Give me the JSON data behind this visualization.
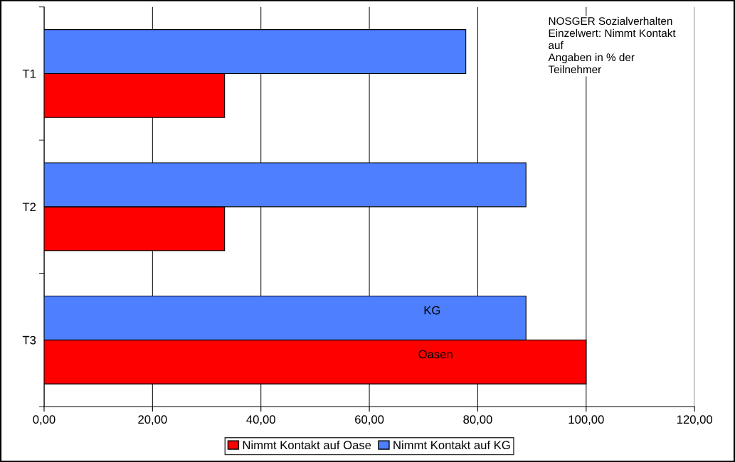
{
  "chart_data": {
    "type": "bar",
    "orientation": "horizontal",
    "categories": [
      "T1",
      "T2",
      "T3"
    ],
    "series": [
      {
        "name": "Nimmt Kontakt auf Oase",
        "color": "#ff0000",
        "values": [
          33.3,
          33.3,
          100.0
        ]
      },
      {
        "name": "Nimmt Kontakt auf KG",
        "color": "#4d7fff",
        "values": [
          77.8,
          88.9,
          88.9
        ]
      }
    ],
    "xlim": [
      0,
      120
    ],
    "xticks": [
      {
        "value": 0,
        "label": "0,00"
      },
      {
        "value": 20,
        "label": "20,00"
      },
      {
        "value": 40,
        "label": "40,00"
      },
      {
        "value": 60,
        "label": "60,00"
      },
      {
        "value": 80,
        "label": "80,00"
      },
      {
        "value": 100,
        "label": "100,00"
      },
      {
        "value": 120,
        "label": "120,00"
      }
    ],
    "grid": "x",
    "legend": "bottom",
    "annotations": [
      "NOSGER Sozialverhalten\nEinzelwert: Nimmt Kontakt\nauf\nAngaben in % der\nTeilnehmer",
      {
        "text": "KG",
        "x": 70,
        "y": "T3"
      },
      {
        "text": "Oasen",
        "x": 69,
        "y": "T3"
      }
    ]
  }
}
